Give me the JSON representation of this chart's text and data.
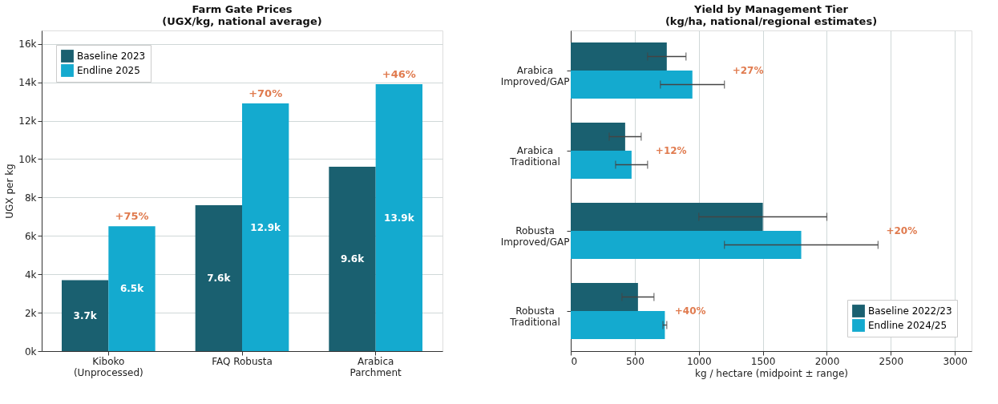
{
  "chart_data": [
    {
      "type": "bar",
      "title": "Farm Gate Prices\n(UGX/kg, national average)",
      "ylabel": "UGX per kg",
      "categories": [
        "Kiboko\n(Unprocessed)",
        "FAQ Robusta",
        "Arabica\nParchment"
      ],
      "series": [
        {
          "name": "Baseline 2023",
          "color": "#1a6070",
          "values": [
            3700,
            7600,
            9600
          ],
          "value_labels": [
            "3.7k",
            "7.6k",
            "9.6k"
          ]
        },
        {
          "name": "Endline 2025",
          "color": "#14aacf",
          "values": [
            6500,
            12900,
            13900
          ],
          "value_labels": [
            "6.5k",
            "12.9k",
            "13.9k"
          ]
        }
      ],
      "ylim": [
        0,
        16700
      ],
      "yticks": [
        {
          "value": 0,
          "label": "0k"
        },
        {
          "value": 2000,
          "label": "2k"
        },
        {
          "value": 4000,
          "label": "4k"
        },
        {
          "value": 6000,
          "label": "6k"
        },
        {
          "value": 8000,
          "label": "8k"
        },
        {
          "value": 10000,
          "label": "10k"
        },
        {
          "value": 12000,
          "label": "12k"
        },
        {
          "value": 14000,
          "label": "14k"
        },
        {
          "value": 16000,
          "label": "16k"
        }
      ],
      "annotations": [
        {
          "text": "+75%",
          "x": "Kiboko\n(Unprocessed)",
          "y": 6500
        },
        {
          "text": "+70%",
          "x": "FAQ Robusta",
          "y": 12900
        },
        {
          "text": "+46%",
          "x": "Arabica\nParchment",
          "y": 13900
        }
      ],
      "grid": "y",
      "legend": "top left"
    },
    {
      "type": "bar",
      "orientation": "horizontal",
      "title": "Yield by Management Tier\n(kg/ha, national/regional estimates)",
      "xlabel": "kg / hectare  (midpoint ± range)",
      "categories": [
        "Arabica\nImproved/GAP",
        "Arabica\nTraditional",
        "Robusta\nImproved/GAP",
        "Robusta\nTraditional"
      ],
      "series": [
        {
          "name": "Baseline 2022/23",
          "color": "#1a6070",
          "values": [
            750,
            425,
            1500,
            525
          ],
          "errors": [
            [
              600,
              900
            ],
            [
              300,
              550
            ],
            [
              1000,
              2000
            ],
            [
              400,
              650
            ]
          ]
        },
        {
          "name": "Endline 2024/25",
          "color": "#14aacf",
          "values": [
            950,
            475,
            1800,
            735
          ],
          "errors": [
            [
              700,
              1200
            ],
            [
              350,
              600
            ],
            [
              1200,
              2400
            ],
            [
              720,
              750
            ]
          ]
        }
      ],
      "xlim": [
        0,
        3130
      ],
      "xticks": [
        0,
        500,
        1000,
        1500,
        2000,
        2500,
        3000
      ],
      "annotations": [
        "+27%",
        "+12%",
        "+20%",
        "+40%"
      ],
      "grid": "x",
      "legend": "bottom right"
    }
  ]
}
